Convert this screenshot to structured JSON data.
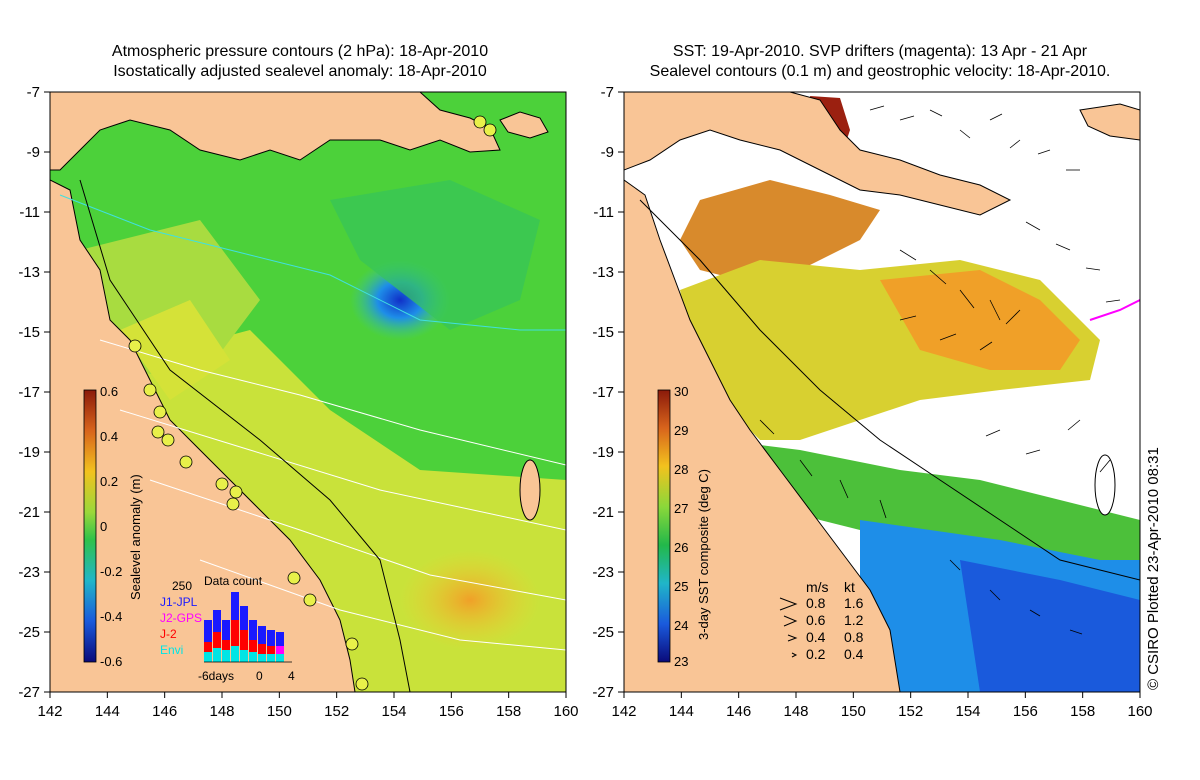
{
  "left_panel": {
    "title_line1": "Atmospheric pressure contours (2 hPa): 18-Apr-2010",
    "title_line2": "Isostatically adjusted sealevel anomaly: 18-Apr-2010",
    "colorbar": {
      "label": "Sealevel anomaly (m)",
      "ticks": [
        "0.6",
        "0.4",
        "0.2",
        "0",
        "-0.2",
        "-0.4",
        "-0.6"
      ]
    },
    "data_count": {
      "title": "Data count",
      "max_label": "250",
      "legend": [
        {
          "name": "J1-JPL",
          "color": "#1a1aff"
        },
        {
          "name": "J2-GPS",
          "color": "#ff00ff"
        },
        {
          "name": "J-2",
          "color": "#ff0000"
        },
        {
          "name": "Envi",
          "color": "#00e5e5"
        }
      ],
      "x_labels": [
        "-6days",
        "0",
        "4"
      ]
    }
  },
  "right_panel": {
    "title_line1": "SST: 19-Apr-2010. SVP drifters (magenta): 13 Apr - 21 Apr",
    "title_line2": "Sealevel contours (0.1 m) and geostrophic velocity: 18-Apr-2010.",
    "colorbar": {
      "label": "3-day SST composite (deg C)",
      "ticks": [
        "30",
        "29",
        "28",
        "27",
        "26",
        "25",
        "24",
        "23"
      ]
    },
    "velocity_key": {
      "header_ms": "m/s",
      "header_kt": "kt",
      "rows": [
        {
          "ms": "0.8",
          "kt": "1.6"
        },
        {
          "ms": "0.6",
          "kt": "1.2"
        },
        {
          "ms": "0.4",
          "kt": "0.8"
        },
        {
          "ms": "0.2",
          "kt": "0.4"
        }
      ]
    },
    "credit": "© CSIRO Plotted 23-Apr-2010 08:31"
  },
  "axes": {
    "x_ticks": [
      "142",
      "144",
      "146",
      "148",
      "150",
      "152",
      "154",
      "156",
      "158",
      "160"
    ],
    "y_ticks": [
      "-7",
      "-9",
      "-11",
      "-13",
      "-15",
      "-17",
      "-19",
      "-21",
      "-23",
      "-25",
      "-27"
    ]
  },
  "colors": {
    "land": "#f9c596",
    "sea_green": "#4cd13a",
    "sea_yellow": "#c9e23a",
    "sst_orange": "#f0a028",
    "sst_blue": "#1e8ee8"
  }
}
